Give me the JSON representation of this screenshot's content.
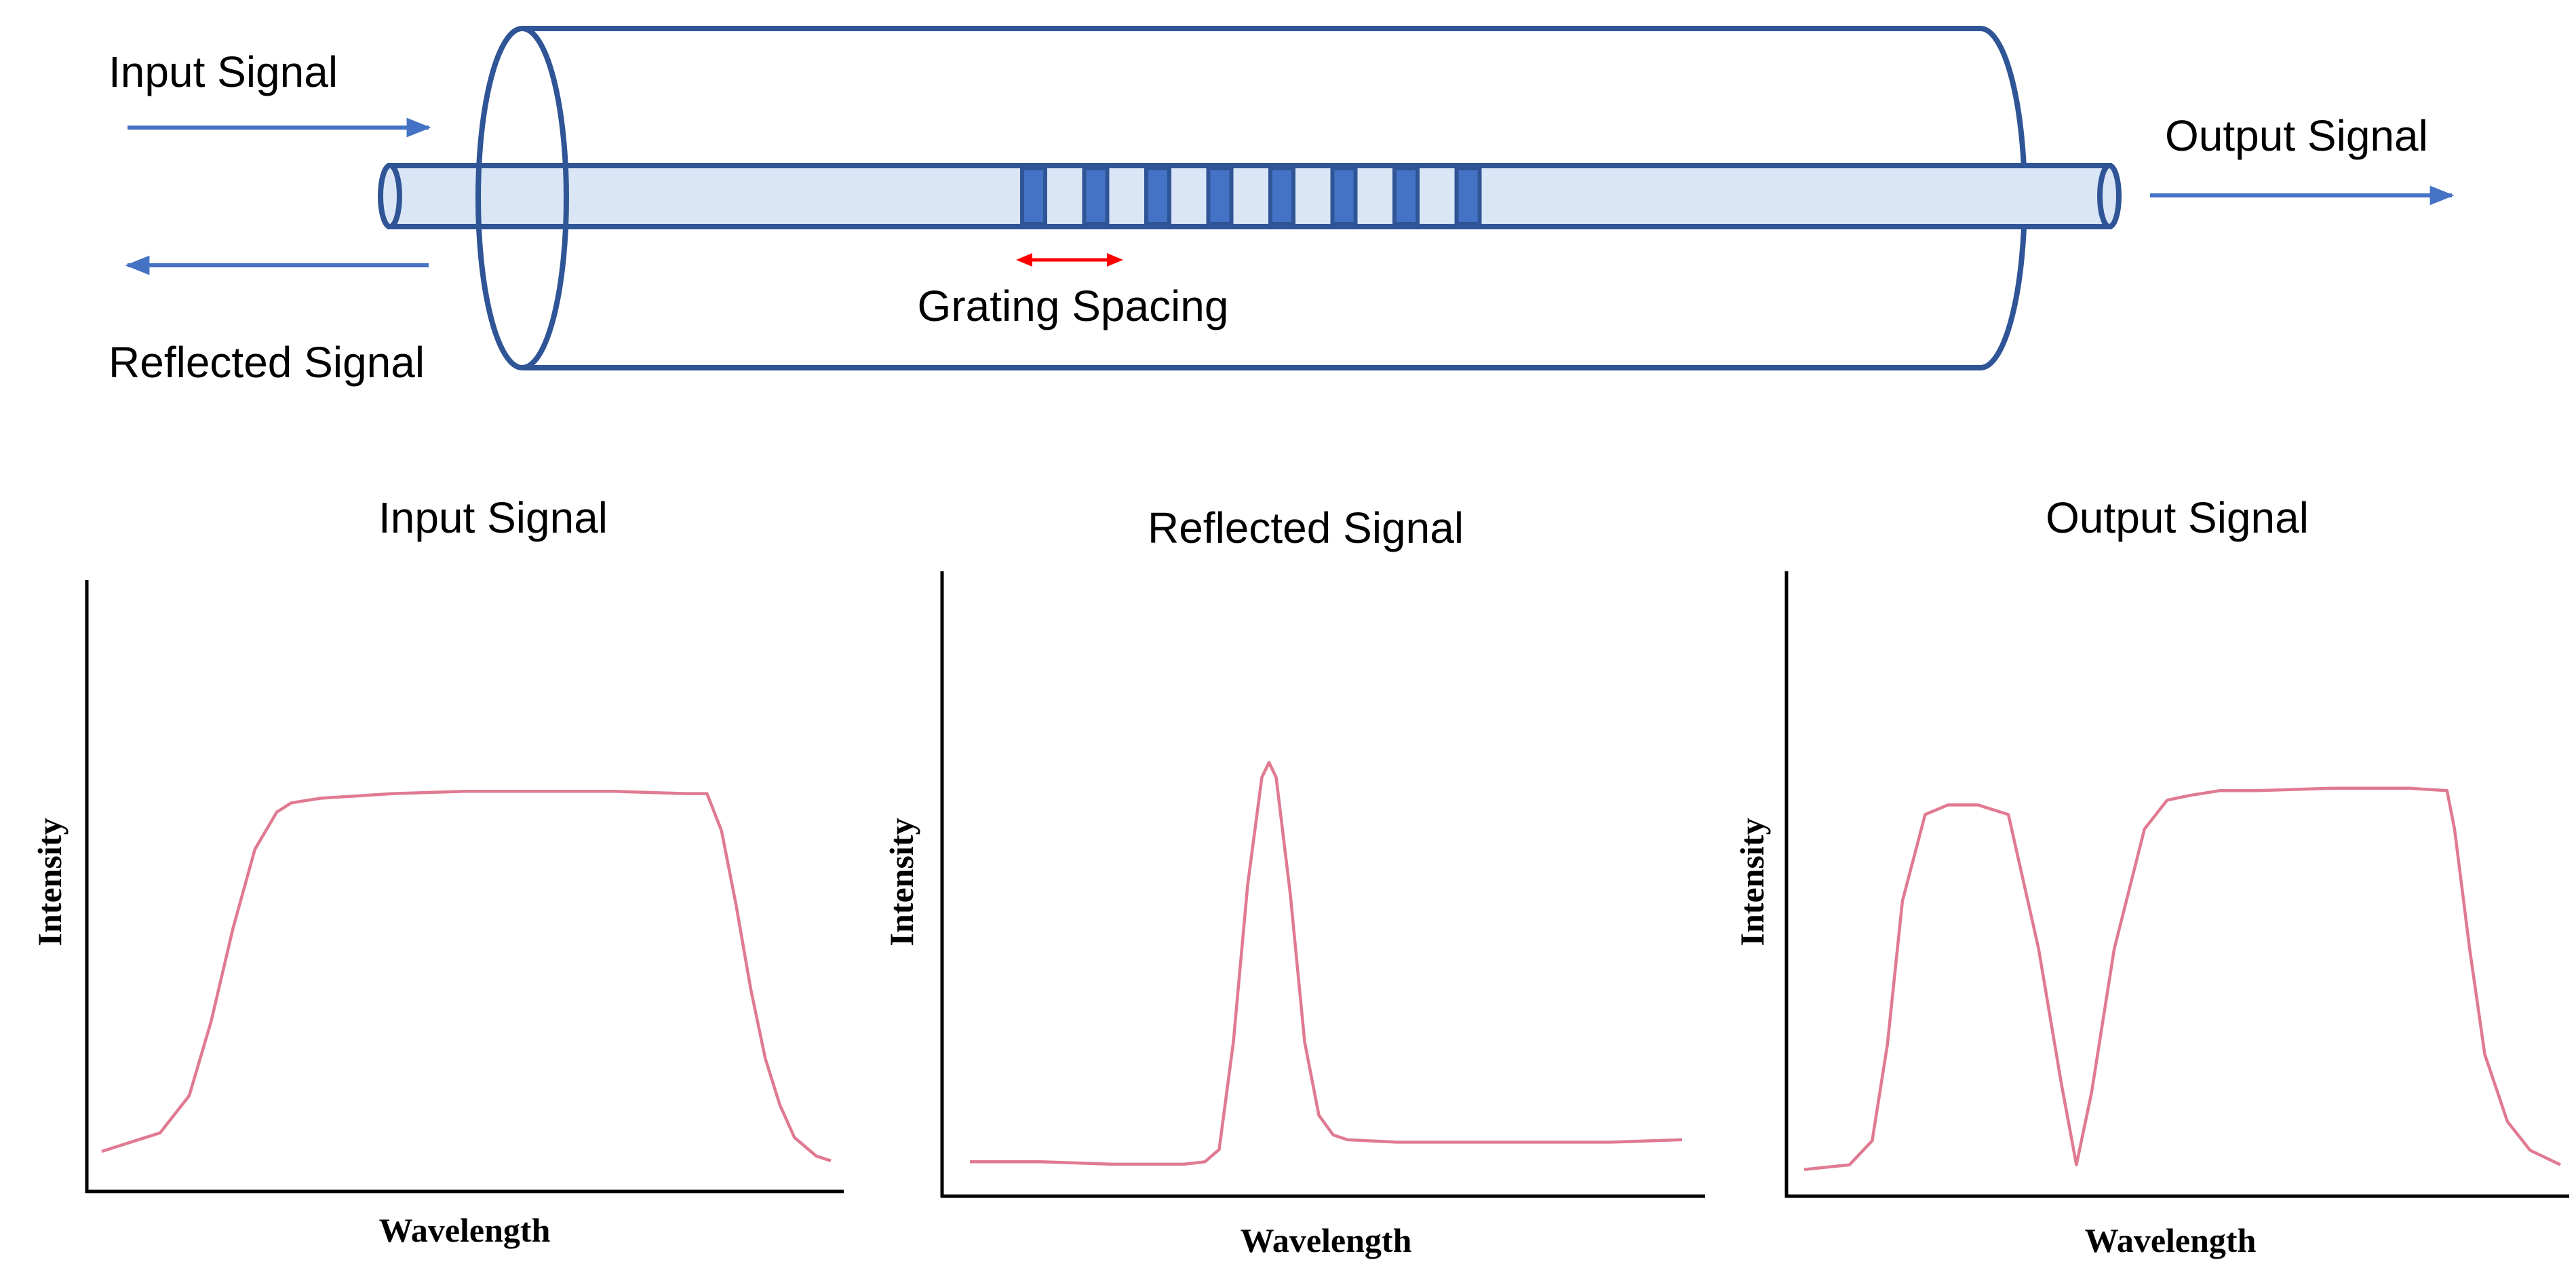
{
  "colors": {
    "outline": "#2f5597",
    "core_fill": "#dae6f5",
    "grating_band": "#4472c4",
    "arrow": "#4472c4",
    "spacing_arrow": "#ff0000",
    "curve": "#e07a91",
    "axis": "#000000"
  },
  "fiber": {
    "input_label": "Input Signal",
    "reflected_label": "Reflected Signal",
    "output_label": "Output Signal",
    "grating_label": "Grating Spacing",
    "grating_band_count": 8
  },
  "charts": {
    "input": {
      "title": "Input Signal",
      "xlabel": "Wavelength",
      "ylabel": "Intensity"
    },
    "reflected": {
      "title": "Reflected Signal",
      "xlabel": "Wavelength",
      "ylabel": "Intensity"
    },
    "output": {
      "title": "Output Signal",
      "xlabel": "Wavelength",
      "ylabel": "Intensity"
    }
  },
  "chart_data": [
    {
      "type": "line",
      "title": "Input Signal",
      "xlabel": "Wavelength",
      "ylabel": "Intensity",
      "xlim": [
        0,
        1
      ],
      "ylim": [
        0,
        1
      ],
      "series": [
        {
          "x": [
            0.0,
            0.04,
            0.08,
            0.12,
            0.15,
            0.18,
            0.21,
            0.24,
            0.26,
            0.3,
            0.4,
            0.5,
            0.6,
            0.7,
            0.8,
            0.83,
            0.85,
            0.87,
            0.89,
            0.91,
            0.93,
            0.95,
            0.98,
            1.0
          ],
          "y": [
            0.07,
            0.09,
            0.11,
            0.19,
            0.35,
            0.55,
            0.72,
            0.8,
            0.82,
            0.83,
            0.84,
            0.845,
            0.845,
            0.845,
            0.84,
            0.84,
            0.76,
            0.6,
            0.42,
            0.27,
            0.17,
            0.1,
            0.06,
            0.05
          ]
        }
      ]
    },
    {
      "type": "line",
      "title": "Reflected Signal",
      "xlabel": "Wavelength",
      "ylabel": "Intensity",
      "xlim": [
        0,
        1
      ],
      "ylim": [
        0,
        1
      ],
      "series": [
        {
          "x": [
            0.0,
            0.1,
            0.2,
            0.3,
            0.33,
            0.35,
            0.37,
            0.39,
            0.41,
            0.42,
            0.43,
            0.45,
            0.47,
            0.49,
            0.51,
            0.53,
            0.6,
            0.7,
            0.8,
            0.9,
            1.0
          ],
          "y": [
            0.055,
            0.055,
            0.05,
            0.05,
            0.055,
            0.08,
            0.3,
            0.62,
            0.84,
            0.87,
            0.84,
            0.6,
            0.3,
            0.15,
            0.11,
            0.1,
            0.095,
            0.095,
            0.095,
            0.095,
            0.1
          ]
        }
      ]
    },
    {
      "type": "line",
      "title": "Output Signal",
      "xlabel": "Wavelength",
      "ylabel": "Intensity",
      "xlim": [
        0,
        1
      ],
      "ylim": [
        0,
        1
      ],
      "series": [
        {
          "x": [
            0.0,
            0.06,
            0.09,
            0.11,
            0.13,
            0.16,
            0.19,
            0.23,
            0.27,
            0.31,
            0.34,
            0.36,
            0.38,
            0.41,
            0.45,
            0.48,
            0.51,
            0.55,
            0.6,
            0.7,
            0.8,
            0.85,
            0.86,
            0.88,
            0.9,
            0.93,
            0.96,
            1.0
          ],
          "y": [
            0.04,
            0.05,
            0.1,
            0.3,
            0.6,
            0.78,
            0.8,
            0.8,
            0.78,
            0.5,
            0.22,
            0.05,
            0.2,
            0.5,
            0.75,
            0.81,
            0.82,
            0.83,
            0.83,
            0.835,
            0.835,
            0.83,
            0.75,
            0.5,
            0.28,
            0.14,
            0.08,
            0.05
          ]
        }
      ]
    }
  ]
}
